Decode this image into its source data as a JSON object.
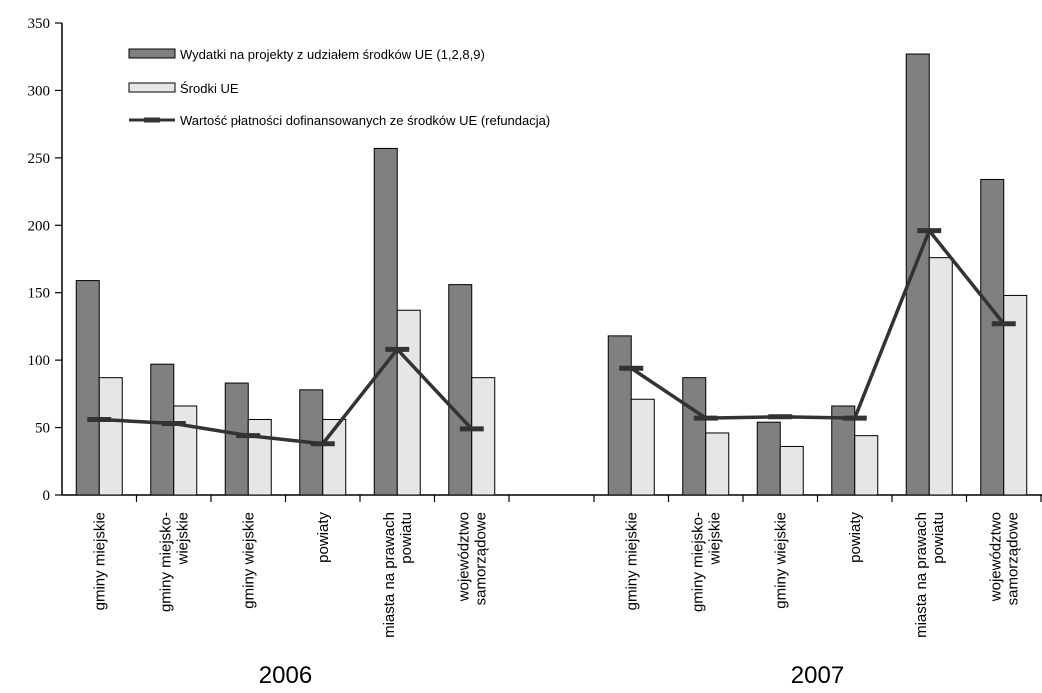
{
  "chart_data": {
    "type": "bar",
    "ylim": [
      0,
      350
    ],
    "yticks": [
      "0",
      "50",
      "100",
      "150",
      "200",
      "250",
      "300",
      "350"
    ],
    "grid": "none",
    "legend_placement": "top-left",
    "groups": [
      {
        "label": "2006",
        "categories": [
          [
            "gminy miejskie"
          ],
          [
            "gminy miejsko-",
            "wiejskie"
          ],
          [
            "gminy wiejskie"
          ],
          [
            "powiaty"
          ],
          [
            "miasta na prawach",
            "powiatu"
          ],
          [
            "województwo",
            "samorządowe"
          ]
        ]
      },
      {
        "label": "2007",
        "categories": [
          [
            "gminy miejskie"
          ],
          [
            "gminy miejsko-",
            "wiejskie"
          ],
          [
            "gminy wiejskie"
          ],
          [
            "powiaty"
          ],
          [
            "miasta na prawach",
            "powiatu"
          ],
          [
            "województwo",
            "samorządowe"
          ]
        ]
      }
    ],
    "series": [
      {
        "name": "Wydatki na projekty z udziałem środków UE (1,2,8,9)",
        "type": "bar",
        "color": "#808080",
        "values": [
          [
            159,
            97,
            83,
            78,
            257,
            156
          ],
          [
            118,
            87,
            54,
            66,
            327,
            234
          ]
        ]
      },
      {
        "name": "Środki UE",
        "type": "bar",
        "color": "#e6e6e6",
        "values": [
          [
            87,
            66,
            56,
            56,
            137,
            87
          ],
          [
            71,
            46,
            36,
            44,
            176,
            148
          ]
        ]
      },
      {
        "name": "Wartość płatności dofinansowanych ze środków UE (refundacja)",
        "type": "line",
        "color": "#333333",
        "values": [
          [
            56,
            53,
            44,
            38,
            108,
            49
          ],
          [
            94,
            57,
            58,
            57,
            196,
            127
          ]
        ]
      }
    ]
  }
}
